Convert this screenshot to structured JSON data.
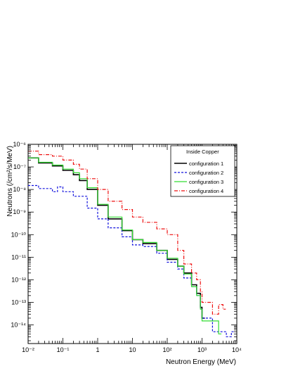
{
  "chart_data": {
    "type": "line",
    "title": "",
    "xlabel": "Neutron Energy (MeV)",
    "ylabel": "Neutrons (/cm²/s/MeV)",
    "xscale": "log",
    "yscale": "log",
    "xlim": [
      0.01,
      10000
    ],
    "ylim": [
      1.5e-15,
      1e-06
    ],
    "grid": false,
    "legend_position": "top-right",
    "legend_title": "Inside Copper",
    "x_tick_labels": [
      "10⁻²",
      "10⁻¹",
      "1",
      "10",
      "10²",
      "10³",
      "10⁴"
    ],
    "y_tick_labels": [
      "10⁻¹⁴",
      "10⁻¹³",
      "10⁻¹²",
      "10⁻¹¹",
      "10⁻¹⁰",
      "10⁻⁹",
      "10⁻⁸",
      "10⁻⁷",
      "10⁻⁶"
    ],
    "series": [
      {
        "name": "configuration 1",
        "color": "#000000",
        "style": "solid",
        "points": [
          [
            0.01,
            2.5e-07
          ],
          [
            0.02,
            1.5e-07
          ],
          [
            0.05,
            1.1e-07
          ],
          [
            0.1,
            7e-08
          ],
          [
            0.2,
            4.5e-08
          ],
          [
            0.3,
            2.5e-08
          ],
          [
            0.5,
            1e-08
          ],
          [
            1,
            2e-09
          ],
          [
            2,
            5e-10
          ],
          [
            5,
            1.5e-10
          ],
          [
            10,
            6e-11
          ],
          [
            20,
            4e-11
          ],
          [
            50,
            2e-11
          ],
          [
            100,
            8e-12
          ],
          [
            200,
            4e-12
          ],
          [
            300,
            2e-12
          ],
          [
            500,
            6e-13
          ],
          [
            700,
            2.5e-13
          ],
          [
            900,
            6e-14
          ],
          [
            1000,
            2e-14
          ]
        ]
      },
      {
        "name": "configuration 2",
        "color": "#1010dd",
        "style": "dashed",
        "points": [
          [
            0.01,
            1.5e-08
          ],
          [
            0.02,
            1.1e-08
          ],
          [
            0.05,
            8e-09
          ],
          [
            0.07,
            1.3e-08
          ],
          [
            0.1,
            8e-09
          ],
          [
            0.2,
            5e-09
          ],
          [
            0.5,
            1.5e-09
          ],
          [
            1,
            5e-10
          ],
          [
            2,
            2e-10
          ],
          [
            5,
            8e-11
          ],
          [
            10,
            3.5e-11
          ],
          [
            20,
            3e-11
          ],
          [
            50,
            1.5e-11
          ],
          [
            100,
            6e-12
          ],
          [
            200,
            3e-12
          ],
          [
            300,
            1.2e-12
          ],
          [
            500,
            5e-13
          ],
          [
            700,
            2e-13
          ],
          [
            900,
            5e-14
          ],
          [
            1000,
            2e-14
          ],
          [
            2000,
            5e-15
          ],
          [
            5000,
            3e-15
          ],
          [
            7000,
            5e-15
          ]
        ]
      },
      {
        "name": "configuration 3",
        "color": "#33dd33",
        "style": "solid",
        "points": [
          [
            0.01,
            2.5e-07
          ],
          [
            0.02,
            1.6e-07
          ],
          [
            0.05,
            1.2e-07
          ],
          [
            0.1,
            8e-08
          ],
          [
            0.2,
            5.5e-08
          ],
          [
            0.3,
            3e-08
          ],
          [
            0.5,
            1.2e-08
          ],
          [
            1,
            2.2e-09
          ],
          [
            2,
            6e-10
          ],
          [
            5,
            1.6e-10
          ],
          [
            10,
            6e-11
          ],
          [
            20,
            4.5e-11
          ],
          [
            50,
            2e-11
          ],
          [
            100,
            9e-12
          ],
          [
            200,
            4e-12
          ],
          [
            300,
            1.8e-12
          ],
          [
            500,
            5e-13
          ],
          [
            700,
            2e-13
          ],
          [
            900,
            5e-14
          ],
          [
            1000,
            1.5e-14
          ],
          [
            3000,
            4e-15
          ]
        ]
      },
      {
        "name": "configuration 4",
        "color": "#ee1111",
        "style": "dash-dot",
        "points": [
          [
            0.01,
            5e-07
          ],
          [
            0.02,
            3.5e-07
          ],
          [
            0.05,
            3e-07
          ],
          [
            0.1,
            2e-07
          ],
          [
            0.2,
            1.3e-07
          ],
          [
            0.3,
            8e-08
          ],
          [
            0.5,
            3e-08
          ],
          [
            1,
            1e-08
          ],
          [
            2,
            3e-09
          ],
          [
            5,
            1.3e-09
          ],
          [
            10,
            6e-10
          ],
          [
            20,
            3.5e-10
          ],
          [
            50,
            1.8e-10
          ],
          [
            100,
            1e-10
          ],
          [
            200,
            2e-11
          ],
          [
            300,
            5e-12
          ],
          [
            500,
            2e-12
          ],
          [
            700,
            1e-12
          ],
          [
            900,
            3e-13
          ],
          [
            1000,
            1e-13
          ],
          [
            2000,
            3e-14
          ],
          [
            3000,
            8e-14
          ],
          [
            4000,
            5e-14
          ]
        ]
      }
    ]
  }
}
